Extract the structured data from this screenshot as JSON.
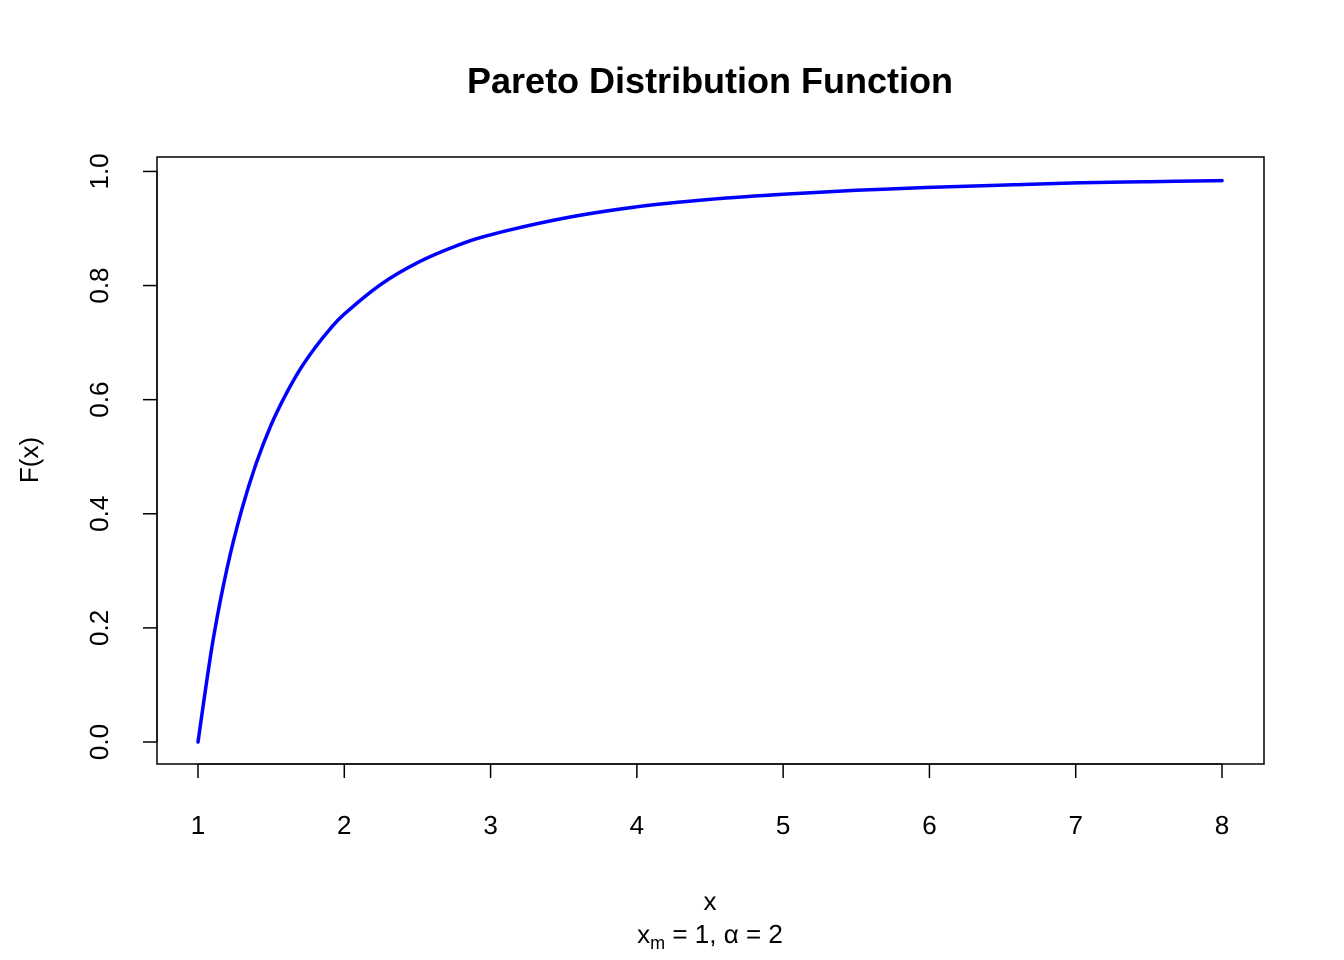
{
  "chart_data": {
    "type": "line",
    "title": "Pareto Distribution Function",
    "xlabel": "x",
    "ylabel": "F(x)",
    "subtitle": {
      "var": "x",
      "var_sub": "m",
      "var_value": " = 1,  ",
      "param": "α",
      "param_value": " = 2"
    },
    "xlim": [
      1,
      8
    ],
    "ylim": [
      0,
      0.985
    ],
    "x_ticks": [
      1,
      2,
      3,
      4,
      5,
      6,
      7,
      8
    ],
    "x_tick_labels": [
      "1",
      "2",
      "3",
      "4",
      "5",
      "6",
      "7",
      "8"
    ],
    "y_ticks": [
      0,
      0.2,
      0.4,
      0.6,
      0.8,
      1.0
    ],
    "y_tick_labels": [
      "0.0",
      "0.2",
      "0.4",
      "0.6",
      "0.8",
      "1.0"
    ],
    "grid": false,
    "series": [
      {
        "color": "#0000ff",
        "x": [
          1,
          1.1,
          1.2,
          1.3,
          1.4,
          1.5,
          1.6,
          1.7,
          1.8,
          1.9,
          2,
          2.25,
          2.5,
          2.75,
          3,
          3.5,
          4,
          4.5,
          5,
          5.5,
          6,
          6.5,
          7,
          7.5,
          8
        ],
        "y": [
          0,
          0.174,
          0.306,
          0.408,
          0.49,
          0.556,
          0.609,
          0.654,
          0.691,
          0.723,
          0.75,
          0.802,
          0.84,
          0.868,
          0.889,
          0.918,
          0.938,
          0.951,
          0.96,
          0.967,
          0.972,
          0.976,
          0.98,
          0.982,
          0.984
        ]
      }
    ]
  }
}
